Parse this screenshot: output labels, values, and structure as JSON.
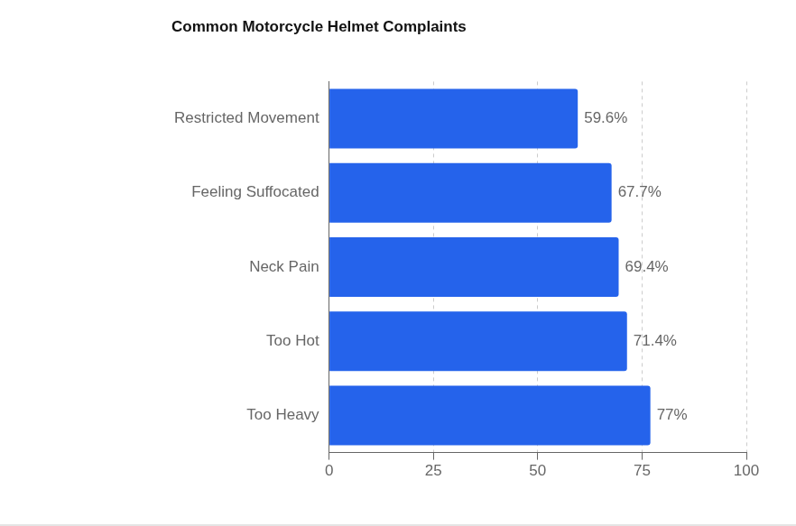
{
  "chart_data": {
    "type": "bar",
    "title": "Common Motorcycle Helmet Complaints",
    "orientation": "horizontal",
    "categories": [
      "Restricted Movement",
      "Feeling Suffocated",
      "Neck Pain",
      "Too Hot",
      "Too Heavy"
    ],
    "values": [
      59.6,
      67.7,
      69.4,
      71.4,
      77
    ],
    "value_labels": [
      "59.6%",
      "67.7%",
      "69.4%",
      "71.4%",
      "77%"
    ],
    "color": "#2563eb",
    "xlim": [
      0,
      100
    ],
    "xticks": [
      0,
      25,
      50,
      75,
      100
    ],
    "grid": true,
    "data_labels": true
  }
}
